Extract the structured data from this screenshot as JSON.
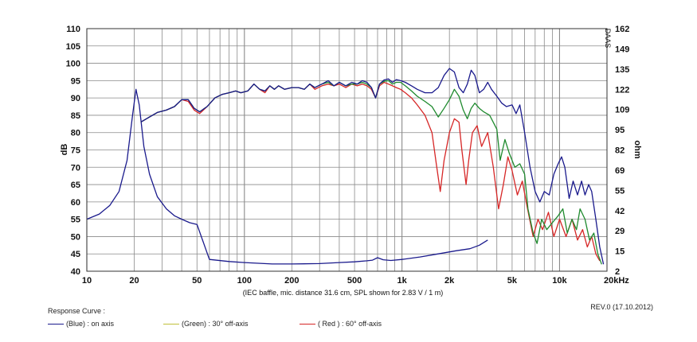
{
  "chart_data": {
    "type": "line",
    "xscale": "log",
    "xlim": [
      10,
      20000
    ],
    "x_ticks": [
      {
        "value": 10,
        "label": "10"
      },
      {
        "value": 20,
        "label": "20"
      },
      {
        "value": 50,
        "label": "50"
      },
      {
        "value": 100,
        "label": "100"
      },
      {
        "value": 200,
        "label": "200"
      },
      {
        "value": 500,
        "label": "500"
      },
      {
        "value": 1000,
        "label": "1k"
      },
      {
        "value": 2000,
        "label": "2k"
      },
      {
        "value": 5000,
        "label": "5k"
      },
      {
        "value": 10000,
        "label": "10k"
      },
      {
        "value": 20000,
        "label": "20kHz"
      }
    ],
    "ylim": [
      40,
      110
    ],
    "ylabel": "dB",
    "y_ticks": [
      40,
      45,
      50,
      55,
      60,
      65,
      70,
      75,
      80,
      85,
      90,
      95,
      100,
      105,
      110
    ],
    "y2label": "ohm",
    "y2_ticks": [
      "2",
      "15",
      "29",
      "42",
      "55",
      "69",
      "82",
      "95",
      "109",
      "122",
      "135",
      "149",
      "162"
    ],
    "grid": true,
    "caption": "(IEC baffle, mic. distance 31.6 cm, SPL shown for 2.83 V / 1 m)",
    "watermark": "DAAS",
    "series": [
      {
        "name": "on axis",
        "kind": "spl",
        "color": "#1a1a8c",
        "points": [
          [
            22,
            83
          ],
          [
            25,
            84.5
          ],
          [
            28,
            85.8
          ],
          [
            32,
            86.5
          ],
          [
            36,
            87.5
          ],
          [
            40,
            89.5
          ],
          [
            44,
            89.5
          ],
          [
            48,
            87
          ],
          [
            52,
            86
          ],
          [
            58,
            87.5
          ],
          [
            65,
            90
          ],
          [
            72,
            91
          ],
          [
            80,
            91.5
          ],
          [
            88,
            92
          ],
          [
            95,
            91.5
          ],
          [
            105,
            92
          ],
          [
            115,
            94
          ],
          [
            125,
            92.5
          ],
          [
            135,
            92
          ],
          [
            145,
            93.5
          ],
          [
            155,
            92.5
          ],
          [
            165,
            93.5
          ],
          [
            180,
            92.5
          ],
          [
            200,
            93
          ],
          [
            220,
            93
          ],
          [
            240,
            92.5
          ],
          [
            260,
            94
          ],
          [
            280,
            93
          ],
          [
            310,
            94
          ],
          [
            340,
            95
          ],
          [
            370,
            93.5
          ],
          [
            400,
            94.5
          ],
          [
            440,
            93.5
          ],
          [
            480,
            94.5
          ],
          [
            520,
            94
          ],
          [
            560,
            95
          ],
          [
            600,
            94.5
          ],
          [
            640,
            93
          ],
          [
            680,
            90
          ],
          [
            720,
            94
          ],
          [
            770,
            95.2
          ],
          [
            820,
            95.5
          ],
          [
            870,
            94.5
          ],
          [
            920,
            95.3
          ],
          [
            980,
            95
          ],
          [
            1050,
            94.5
          ],
          [
            1150,
            93.5
          ],
          [
            1250,
            92.5
          ],
          [
            1400,
            91.5
          ],
          [
            1550,
            91.5
          ],
          [
            1700,
            93
          ],
          [
            1850,
            96.5
          ],
          [
            2000,
            98.5
          ],
          [
            2150,
            97.5
          ],
          [
            2300,
            93
          ],
          [
            2450,
            91.5
          ],
          [
            2600,
            94
          ],
          [
            2750,
            98
          ],
          [
            2900,
            96.5
          ],
          [
            3100,
            91.5
          ],
          [
            3300,
            92.5
          ],
          [
            3500,
            94.5
          ],
          [
            3700,
            92.5
          ],
          [
            4000,
            90.5
          ],
          [
            4300,
            88.5
          ],
          [
            4600,
            87.5
          ],
          [
            5000,
            88
          ],
          [
            5300,
            85.5
          ],
          [
            5600,
            88
          ],
          [
            6000,
            80
          ],
          [
            6500,
            70
          ],
          [
            7000,
            63
          ],
          [
            7500,
            60
          ],
          [
            8000,
            63
          ],
          [
            8600,
            62
          ],
          [
            9200,
            68
          ],
          [
            9800,
            71
          ],
          [
            10300,
            73
          ],
          [
            10800,
            70
          ],
          [
            11500,
            61
          ],
          [
            12200,
            66
          ],
          [
            13000,
            62
          ],
          [
            13800,
            66
          ],
          [
            14500,
            62
          ],
          [
            15300,
            65
          ],
          [
            16000,
            63
          ],
          [
            17000,
            55
          ],
          [
            18000,
            47
          ],
          [
            19000,
            42
          ]
        ]
      },
      {
        "name": "30° off-axis",
        "kind": "spl",
        "color": "#1f8a2e",
        "points": [
          [
            22,
            83
          ],
          [
            25,
            84.5
          ],
          [
            28,
            85.8
          ],
          [
            32,
            86.5
          ],
          [
            36,
            87.5
          ],
          [
            40,
            89.5
          ],
          [
            44,
            89.5
          ],
          [
            48,
            87
          ],
          [
            52,
            86
          ],
          [
            58,
            87.5
          ],
          [
            65,
            90
          ],
          [
            72,
            91
          ],
          [
            80,
            91.5
          ],
          [
            88,
            92
          ],
          [
            95,
            91.5
          ],
          [
            105,
            92
          ],
          [
            115,
            94
          ],
          [
            125,
            92.5
          ],
          [
            135,
            92
          ],
          [
            145,
            93.5
          ],
          [
            155,
            92.5
          ],
          [
            165,
            93.5
          ],
          [
            180,
            92.5
          ],
          [
            200,
            93
          ],
          [
            220,
            93
          ],
          [
            240,
            92.5
          ],
          [
            260,
            94
          ],
          [
            280,
            93
          ],
          [
            310,
            94
          ],
          [
            340,
            94.5
          ],
          [
            370,
            93.5
          ],
          [
            400,
            94.5
          ],
          [
            440,
            93.5
          ],
          [
            480,
            94
          ],
          [
            520,
            94
          ],
          [
            560,
            94.5
          ],
          [
            600,
            94
          ],
          [
            640,
            93
          ],
          [
            680,
            90
          ],
          [
            720,
            94
          ],
          [
            770,
            94.8
          ],
          [
            820,
            95
          ],
          [
            870,
            94
          ],
          [
            920,
            94.5
          ],
          [
            980,
            94.5
          ],
          [
            1050,
            93.5
          ],
          [
            1150,
            92
          ],
          [
            1250,
            90.5
          ],
          [
            1400,
            89
          ],
          [
            1550,
            87.5
          ],
          [
            1700,
            84.5
          ],
          [
            1850,
            87
          ],
          [
            2000,
            89.5
          ],
          [
            2150,
            92.5
          ],
          [
            2300,
            90.5
          ],
          [
            2450,
            86.5
          ],
          [
            2600,
            84
          ],
          [
            2750,
            87
          ],
          [
            2900,
            88.5
          ],
          [
            3100,
            87
          ],
          [
            3300,
            86
          ],
          [
            3600,
            85
          ],
          [
            4000,
            81
          ],
          [
            4200,
            72
          ],
          [
            4500,
            78
          ],
          [
            4800,
            74
          ],
          [
            5200,
            70
          ],
          [
            5600,
            71
          ],
          [
            6000,
            68
          ],
          [
            6300,
            58
          ],
          [
            6800,
            51
          ],
          [
            7200,
            48
          ],
          [
            7700,
            55
          ],
          [
            8300,
            52
          ],
          [
            9000,
            54
          ],
          [
            9800,
            56
          ],
          [
            10500,
            58
          ],
          [
            11200,
            51
          ],
          [
            12000,
            55
          ],
          [
            12800,
            52
          ],
          [
            13500,
            58
          ],
          [
            14500,
            55
          ],
          [
            15500,
            49
          ],
          [
            16500,
            51
          ],
          [
            17500,
            45
          ],
          [
            18500,
            42
          ]
        ]
      },
      {
        "name": "60° off-axis",
        "kind": "spl",
        "color": "#d62626",
        "points": [
          [
            22,
            83
          ],
          [
            25,
            84.5
          ],
          [
            28,
            85.8
          ],
          [
            32,
            86.5
          ],
          [
            36,
            87.5
          ],
          [
            40,
            89.5
          ],
          [
            44,
            89
          ],
          [
            48,
            86.5
          ],
          [
            52,
            85.5
          ],
          [
            58,
            87.5
          ],
          [
            65,
            90
          ],
          [
            72,
            91
          ],
          [
            80,
            91.5
          ],
          [
            88,
            92
          ],
          [
            95,
            91.5
          ],
          [
            105,
            92
          ],
          [
            115,
            94
          ],
          [
            125,
            92.5
          ],
          [
            135,
            91.5
          ],
          [
            145,
            93.5
          ],
          [
            155,
            92.5
          ],
          [
            165,
            93.5
          ],
          [
            180,
            92.5
          ],
          [
            200,
            93
          ],
          [
            220,
            93
          ],
          [
            240,
            92.5
          ],
          [
            260,
            94
          ],
          [
            280,
            92.5
          ],
          [
            310,
            93.5
          ],
          [
            340,
            94
          ],
          [
            370,
            93.5
          ],
          [
            400,
            94
          ],
          [
            440,
            93
          ],
          [
            480,
            94
          ],
          [
            520,
            93.5
          ],
          [
            560,
            94
          ],
          [
            600,
            93.5
          ],
          [
            640,
            92.5
          ],
          [
            680,
            90
          ],
          [
            720,
            93.5
          ],
          [
            770,
            94.5
          ],
          [
            820,
            94
          ],
          [
            870,
            93.5
          ],
          [
            920,
            93
          ],
          [
            980,
            92.5
          ],
          [
            1050,
            91.5
          ],
          [
            1150,
            90
          ],
          [
            1250,
            88
          ],
          [
            1400,
            85
          ],
          [
            1550,
            80
          ],
          [
            1650,
            71
          ],
          [
            1750,
            63
          ],
          [
            1850,
            72
          ],
          [
            2000,
            80
          ],
          [
            2150,
            84
          ],
          [
            2300,
            83
          ],
          [
            2400,
            75
          ],
          [
            2550,
            65
          ],
          [
            2650,
            72
          ],
          [
            2800,
            80
          ],
          [
            3000,
            82
          ],
          [
            3200,
            76
          ],
          [
            3500,
            80
          ],
          [
            3800,
            70
          ],
          [
            4100,
            58
          ],
          [
            4400,
            65
          ],
          [
            4700,
            73
          ],
          [
            5000,
            69
          ],
          [
            5400,
            62
          ],
          [
            5800,
            66
          ],
          [
            6200,
            59
          ],
          [
            6800,
            50
          ],
          [
            7300,
            55
          ],
          [
            7800,
            52
          ],
          [
            8500,
            57
          ],
          [
            9200,
            50
          ],
          [
            10000,
            55
          ],
          [
            11000,
            50
          ],
          [
            12000,
            55
          ],
          [
            13000,
            49
          ],
          [
            14000,
            52
          ],
          [
            15000,
            47
          ],
          [
            16000,
            50
          ],
          [
            17000,
            45
          ],
          [
            18000,
            43
          ]
        ]
      },
      {
        "name": "",
        "kind": "impedance",
        "color": "#1a1a8c",
        "points": [
          [
            10,
            55
          ],
          [
            12,
            56.5
          ],
          [
            14,
            59
          ],
          [
            16,
            63
          ],
          [
            18,
            72
          ],
          [
            19.5,
            85
          ],
          [
            20.5,
            92.5
          ],
          [
            21.5,
            88
          ],
          [
            23,
            76
          ],
          [
            25,
            68
          ],
          [
            28,
            61.5
          ],
          [
            32,
            58
          ],
          [
            36,
            56
          ],
          [
            40,
            55
          ],
          [
            45,
            54
          ],
          [
            50,
            53.5
          ],
          [
            60,
            43.4
          ],
          [
            80,
            42.8
          ],
          [
            100,
            42.5
          ],
          [
            150,
            42.1
          ],
          [
            200,
            42.1
          ],
          [
            300,
            42.2
          ],
          [
            400,
            42.5
          ],
          [
            500,
            42.7
          ],
          [
            600,
            43
          ],
          [
            650,
            43.2
          ],
          [
            700,
            43.9
          ],
          [
            760,
            43.3
          ],
          [
            850,
            43.1
          ],
          [
            1000,
            43.4
          ],
          [
            1300,
            44.1
          ],
          [
            1700,
            45
          ],
          [
            2200,
            45.9
          ],
          [
            2700,
            46.5
          ],
          [
            3100,
            47.5
          ],
          [
            3500,
            49
          ]
        ]
      }
    ]
  },
  "legend": {
    "title": "Response Curve :",
    "items": [
      {
        "label": "(Blue)  : on axis",
        "color": "#1a1a8c"
      },
      {
        "label": "(Green) : 30° off-axis",
        "color": "#bfbf3a"
      },
      {
        "label": "( Red ) : 60° off-axis",
        "color": "#d62626"
      }
    ]
  },
  "revision": "REV.0 (17.10.2012)"
}
